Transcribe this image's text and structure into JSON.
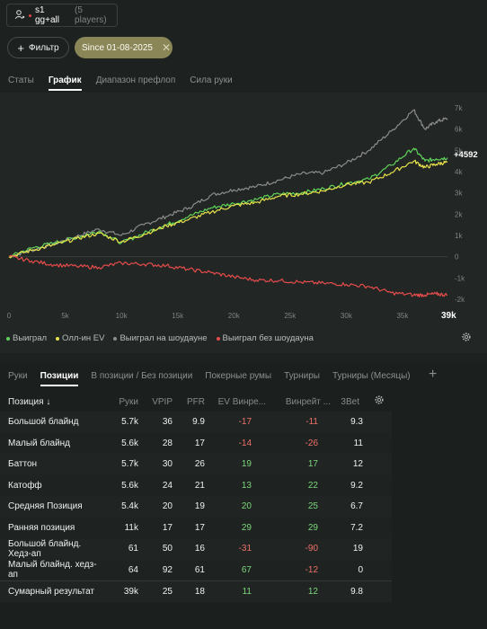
{
  "player": {
    "name": "s1 gg+all",
    "count": "(5 players)"
  },
  "filter": {
    "button_label": "Фильтр",
    "date_chip": "Since 01-08-2025"
  },
  "top_tabs": [
    "Статы",
    "График",
    "Диапазон префлоп",
    "Сила руки"
  ],
  "top_tabs_active": 1,
  "chart_data": {
    "type": "line",
    "x_ticks": [
      "0",
      "5k",
      "10k",
      "15k",
      "20k",
      "25k",
      "30k",
      "35k"
    ],
    "x_end_label": "39k",
    "y_ticks": [
      "7k",
      "6k",
      "5k",
      "4k",
      "3k",
      "2k",
      "1k",
      "0",
      "-1k",
      "-2k"
    ],
    "xlim": [
      0,
      39000
    ],
    "ylim": [
      -2000,
      7000
    ],
    "end_value_label": "+4592",
    "series": [
      {
        "name": "Выиграл на шоудауне",
        "color": "#8c8c8c",
        "x": [
          0,
          2000,
          4000,
          6000,
          8000,
          10000,
          12000,
          14000,
          16000,
          18000,
          20000,
          22000,
          24000,
          26000,
          28000,
          30000,
          32000,
          34000,
          36000,
          37000,
          38000,
          39000
        ],
        "values": [
          0,
          300,
          600,
          950,
          1300,
          1000,
          1500,
          1900,
          2300,
          2900,
          3150,
          3300,
          3600,
          3900,
          3950,
          4400,
          5000,
          5900,
          6900,
          6000,
          6350,
          6500
        ]
      },
      {
        "name": "Выиграл",
        "color": "#5fd35a",
        "x": [
          0,
          2000,
          4000,
          6000,
          8000,
          10000,
          12000,
          14000,
          16000,
          18000,
          20000,
          22000,
          24000,
          26000,
          28000,
          30000,
          32000,
          34000,
          36000,
          37000,
          38000,
          39000
        ],
        "values": [
          0,
          400,
          650,
          900,
          1200,
          650,
          1100,
          1500,
          1900,
          2300,
          2500,
          2700,
          2950,
          3000,
          3200,
          3450,
          3650,
          4300,
          5100,
          4500,
          4600,
          4650
        ]
      },
      {
        "name": "Олл-ин EV",
        "color": "#e8e24a",
        "x": [
          0,
          2000,
          4000,
          6000,
          8000,
          10000,
          12000,
          14000,
          16000,
          18000,
          20000,
          22000,
          24000,
          26000,
          28000,
          30000,
          32000,
          34000,
          36000,
          37000,
          38000,
          39000
        ],
        "values": [
          0,
          300,
          550,
          850,
          1100,
          700,
          1050,
          1450,
          1750,
          2100,
          2400,
          2550,
          2850,
          2950,
          3100,
          3400,
          3500,
          3950,
          4500,
          4200,
          4350,
          4450
        ]
      },
      {
        "name": "Выиграл без шоудауна",
        "color": "#e64c4c",
        "x": [
          0,
          2000,
          4000,
          6000,
          8000,
          10000,
          12000,
          14000,
          16000,
          18000,
          20000,
          22000,
          24000,
          26000,
          28000,
          30000,
          32000,
          34000,
          36000,
          37000,
          38000,
          39000
        ],
        "values": [
          0,
          -200,
          -380,
          -450,
          -500,
          -300,
          -350,
          -420,
          -600,
          -750,
          -950,
          -1100,
          -1120,
          -1200,
          -1250,
          -1300,
          -1400,
          -1700,
          -1800,
          -1800,
          -1750,
          -1800
        ]
      }
    ]
  },
  "legend": [
    {
      "label": "Выиграл",
      "color": "#5fd35a"
    },
    {
      "label": "Олл-ин EV",
      "color": "#e8e24a"
    },
    {
      "label": "Выиграл на шоудауне",
      "color": "#8c8c8c"
    },
    {
      "label": "Выиграл без шоудауна",
      "color": "#e64c4c"
    }
  ],
  "bottom_tabs": [
    "Руки",
    "Позиции",
    "В позиции / Без позиции",
    "Покерные румы",
    "Турниры",
    "Турниры (Месяцы)"
  ],
  "bottom_tabs_active": 1,
  "table": {
    "headers": [
      "Позиция ↓",
      "Руки",
      "VPIP",
      "PFR",
      "EV Винре...",
      "Винрейт ...",
      "3Bet"
    ],
    "rows": [
      [
        "Большой блайнд",
        "5.7k",
        "36",
        "9.9",
        "-17",
        "-11",
        "9.3"
      ],
      [
        "Малый блайнд",
        "5.6k",
        "28",
        "17",
        "-14",
        "-26",
        "11"
      ],
      [
        "Баттон",
        "5.7k",
        "30",
        "26",
        "19",
        "17",
        "12"
      ],
      [
        "Катофф",
        "5.6k",
        "24",
        "21",
        "13",
        "22",
        "9.2"
      ],
      [
        "Средняя Позиция",
        "5.4k",
        "20",
        "19",
        "20",
        "25",
        "6.7"
      ],
      [
        "Ранняя позиция",
        "11k",
        "17",
        "17",
        "29",
        "29",
        "7.2"
      ],
      [
        "Большой блайнд. Хедз-ап",
        "61",
        "50",
        "16",
        "-31",
        "-90",
        "19"
      ],
      [
        "Малый блайнд. хедз-ап",
        "64",
        "92",
        "61",
        "67",
        "-12",
        "0"
      ],
      [
        "Сумарный результат",
        "39k",
        "25",
        "18",
        "11",
        "12",
        "9.8"
      ]
    ]
  }
}
